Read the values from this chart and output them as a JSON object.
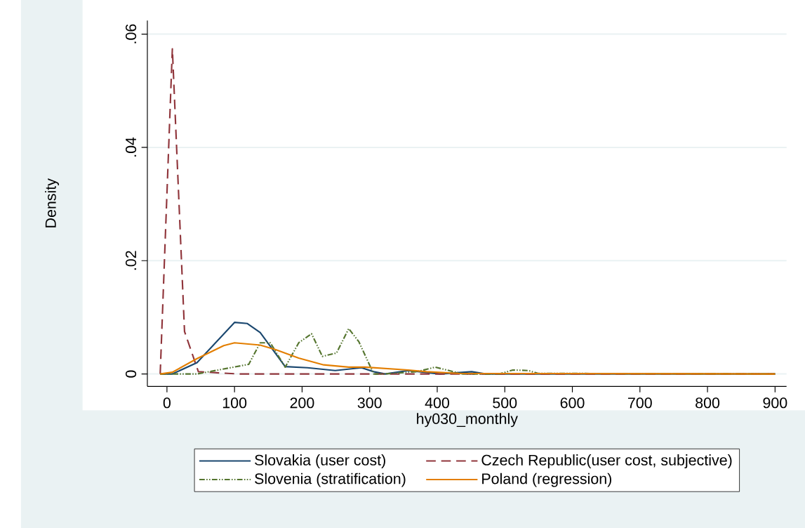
{
  "chart_data": {
    "type": "line",
    "xlabel": "hy030_monthly",
    "ylabel": "Density",
    "xlim": [
      -29,
      917
    ],
    "ylim": [
      -0.0022,
      0.0624
    ],
    "xticks": [
      0,
      100,
      200,
      300,
      400,
      500,
      600,
      700,
      800,
      900
    ],
    "yticks": [
      {
        "value": 0,
        "label": "0"
      },
      {
        "value": 0.02,
        "label": ".02"
      },
      {
        "value": 0.04,
        "label": ".04"
      },
      {
        "value": 0.06,
        "label": ".06"
      }
    ],
    "grid": "y",
    "legend": "bottom",
    "series": [
      {
        "name": "Slovakia (user cost)",
        "color": "#1a476f",
        "line_style": "solid",
        "x": [
          -10,
          8,
          44.5,
          100,
          119,
          138,
          175,
          208,
          249,
          288,
          306,
          323,
          357,
          404,
          451,
          472,
          900
        ],
        "values": [
          0,
          0,
          0.002,
          0.0091,
          0.0089,
          0.0073,
          0.0013,
          0.0011,
          0.0006,
          0.0011,
          0.0004,
          0,
          0.0006,
          0,
          0.0004,
          0,
          0
        ]
      },
      {
        "name": "Czech Republic(user cost, subjective)",
        "color": "#90353b",
        "line_style": "dashed",
        "x": [
          -10,
          8,
          26,
          46.5,
          105,
          900
        ],
        "values": [
          0,
          0.0574,
          0.0075,
          0.0004,
          0,
          0
        ]
      },
      {
        "name": "Slovenia (stratification)",
        "color": "#55752f",
        "line_style": "dashdot",
        "x": [
          -10,
          8,
          44.5,
          121,
          138,
          153,
          175,
          195,
          214,
          230,
          251,
          269,
          284,
          306,
          320,
          370,
          397,
          424,
          438,
          492,
          512,
          535,
          549,
          900
        ],
        "values": [
          0,
          0,
          0,
          0.0017,
          0.0055,
          0.0055,
          0.0012,
          0.0055,
          0.0071,
          0.0031,
          0.0037,
          0.008,
          0.0057,
          0,
          0,
          0.0004,
          0.0012,
          0.0004,
          0,
          0,
          0.0007,
          0.0006,
          0.0001,
          0
        ]
      },
      {
        "name": "Poland (regression)",
        "color": "#e37e00",
        "line_style": "solid",
        "x": [
          -10,
          8,
          44.5,
          84,
          100,
          138,
          161,
          195,
          232,
          269,
          293,
          357,
          384,
          431,
          900
        ],
        "values": [
          0,
          0.0003,
          0.0027,
          0.005,
          0.0055,
          0.0051,
          0.0043,
          0.0028,
          0.0016,
          0.0012,
          0.0012,
          0.0007,
          0.0004,
          0.0001,
          0
        ]
      }
    ]
  }
}
